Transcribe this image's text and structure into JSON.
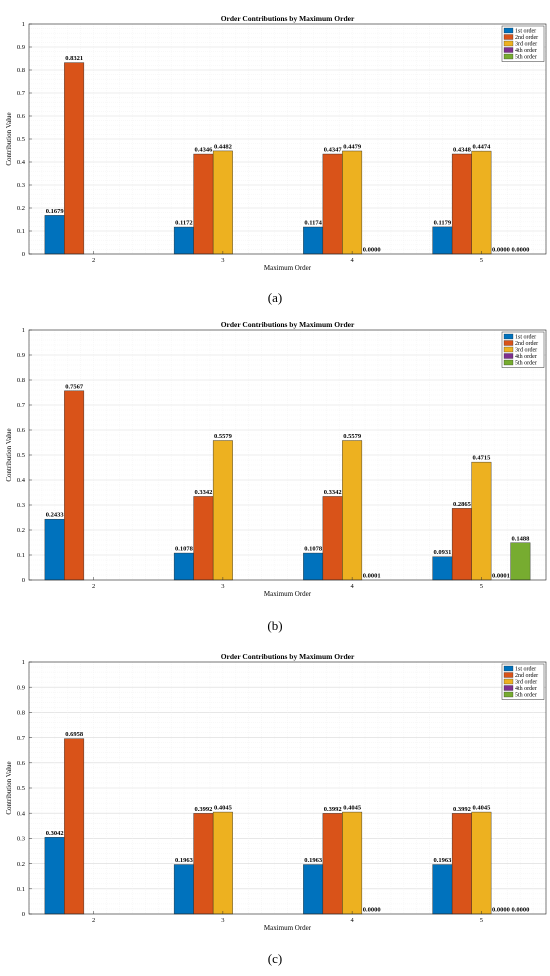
{
  "chart_data": [
    {
      "panel": "(a)",
      "type": "bar",
      "title": "Order Contributions by Maximum Order",
      "xlabel": "Maximum Order",
      "ylabel": "Contribution Value",
      "ylim": [
        0,
        1
      ],
      "yticks": [
        "0",
        "0.1",
        "0.2",
        "0.3",
        "0.4",
        "0.5",
        "0.6",
        "0.7",
        "0.8",
        "0.9",
        "1"
      ],
      "grid": true,
      "legend": "top-right",
      "categories": [
        "2",
        "3",
        "4",
        "5"
      ],
      "series": [
        {
          "name": "1st order",
          "color": "#0072BD",
          "values": [
            0.1679,
            0.1172,
            0.1174,
            0.1179
          ],
          "labels": [
            "0.1679",
            "0.1172",
            "0.1174",
            "0.1179"
          ]
        },
        {
          "name": "2nd order",
          "color": "#D95319",
          "values": [
            0.8321,
            0.4346,
            0.4347,
            0.4348
          ],
          "labels": [
            "0.8321",
            "0.4346",
            "0.4347",
            "0.4348"
          ]
        },
        {
          "name": "3rd order",
          "color": "#EDB120",
          "values": [
            0,
            0.4482,
            0.4479,
            0.4474
          ],
          "labels": [
            "",
            "0.4482",
            "0.4479",
            "0.4474"
          ]
        },
        {
          "name": "4th order",
          "color": "#7E2F8E",
          "values": [
            0,
            0,
            0.0,
            0.0
          ],
          "labels": [
            "",
            "",
            "0.0000",
            "0.0000"
          ]
        },
        {
          "name": "5th order",
          "color": "#77AC30",
          "values": [
            0,
            0,
            0,
            0.0
          ],
          "labels": [
            "",
            "",
            "",
            "0.0000"
          ]
        }
      ]
    },
    {
      "panel": "(b)",
      "type": "bar",
      "title": "Order Contributions by Maximum Order",
      "xlabel": "Maximum Order",
      "ylabel": "Contribution Value",
      "ylim": [
        0,
        1
      ],
      "yticks": [
        "0",
        "0.1",
        "0.2",
        "0.3",
        "0.4",
        "0.5",
        "0.6",
        "0.7",
        "0.8",
        "0.9",
        "1"
      ],
      "grid": true,
      "legend": "top-right",
      "categories": [
        "2",
        "3",
        "4",
        "5"
      ],
      "series": [
        {
          "name": "1st order",
          "color": "#0072BD",
          "values": [
            0.2433,
            0.1078,
            0.1078,
            0.0931
          ],
          "labels": [
            "0.2433",
            "0.1078",
            "0.1078",
            "0.0931"
          ]
        },
        {
          "name": "2nd order",
          "color": "#D95319",
          "values": [
            0.7567,
            0.3342,
            0.3342,
            0.2865
          ],
          "labels": [
            "0.7567",
            "0.3342",
            "0.3342",
            "0.2865"
          ]
        },
        {
          "name": "3rd order",
          "color": "#EDB120",
          "values": [
            0,
            0.5579,
            0.5579,
            0.4715
          ],
          "labels": [
            "",
            "0.5579",
            "0.5579",
            "0.4715"
          ]
        },
        {
          "name": "4th order",
          "color": "#7E2F8E",
          "values": [
            0,
            0,
            0.0001,
            0.0001
          ],
          "labels": [
            "",
            "",
            "0.0001",
            "0.0001"
          ]
        },
        {
          "name": "5th order",
          "color": "#77AC30",
          "values": [
            0,
            0,
            0,
            0.1488
          ],
          "labels": [
            "",
            "",
            "",
            "0.1488"
          ]
        }
      ]
    },
    {
      "panel": "(c)",
      "type": "bar",
      "title": "Order Contributions by Maximum Order",
      "xlabel": "Maximum Order",
      "ylabel": "Contribution Value",
      "ylim": [
        0,
        1
      ],
      "yticks": [
        "0",
        "0.1",
        "0.2",
        "0.3",
        "0.4",
        "0.5",
        "0.6",
        "0.7",
        "0.8",
        "0.9",
        "1"
      ],
      "grid": true,
      "legend": "top-right",
      "categories": [
        "2",
        "3",
        "4",
        "5"
      ],
      "series": [
        {
          "name": "1st order",
          "color": "#0072BD",
          "values": [
            0.3042,
            0.1963,
            0.1963,
            0.1963
          ],
          "labels": [
            "0.3042",
            "0.1963",
            "0.1963",
            "0.1963"
          ]
        },
        {
          "name": "2nd order",
          "color": "#D95319",
          "values": [
            0.6958,
            0.3992,
            0.3992,
            0.3992
          ],
          "labels": [
            "0.6958",
            "0.3992",
            "0.3992",
            "0.3992"
          ]
        },
        {
          "name": "3rd order",
          "color": "#EDB120",
          "values": [
            0,
            0.4045,
            0.4045,
            0.4045
          ],
          "labels": [
            "",
            "0.4045",
            "0.4045",
            "0.4045"
          ]
        },
        {
          "name": "4th order",
          "color": "#7E2F8E",
          "values": [
            0,
            0,
            0.0,
            0.0
          ],
          "labels": [
            "",
            "",
            "0.0000",
            "0.0000"
          ]
        },
        {
          "name": "5th order",
          "color": "#77AC30",
          "values": [
            0,
            0,
            0,
            0.0
          ],
          "labels": [
            "",
            "",
            "",
            "0.0000"
          ]
        }
      ]
    }
  ]
}
